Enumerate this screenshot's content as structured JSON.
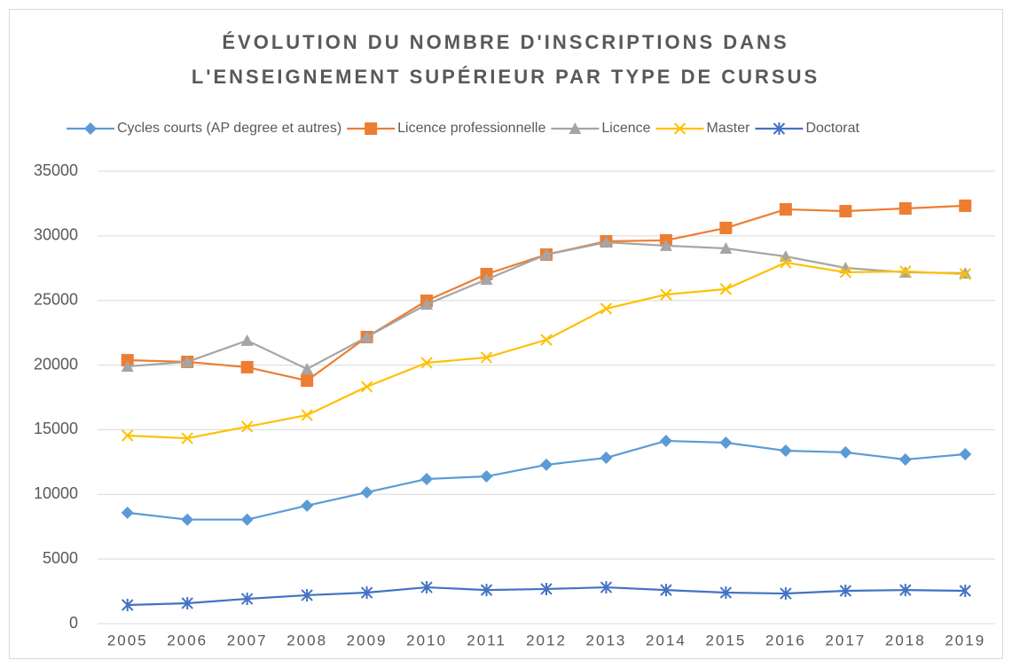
{
  "chart_data": {
    "type": "line",
    "title": [
      "ÉVOLUTION DU NOMBRE D'INSCRIPTIONS DANS",
      "L'ENSEIGNEMENT SUPÉRIEUR PAR TYPE DE CURSUS"
    ],
    "categories": [
      "2005",
      "2006",
      "2007",
      "2008",
      "2009",
      "2010",
      "2011",
      "2012",
      "2013",
      "2014",
      "2015",
      "2016",
      "2017",
      "2018",
      "2019"
    ],
    "series": [
      {
        "name": "Cycles courts (AP degree et autres)",
        "color": "#5b9bd5",
        "marker": "diamond",
        "values": [
          8580,
          8050,
          8050,
          9130,
          10160,
          11190,
          11390,
          12290,
          12830,
          14140,
          14000,
          13380,
          13250,
          12700,
          13110
        ]
      },
      {
        "name": "Licence professionnelle",
        "color": "#ed7d31",
        "marker": "square",
        "values": [
          20380,
          20250,
          19840,
          18800,
          22170,
          24980,
          27040,
          28550,
          29580,
          29650,
          30610,
          32050,
          31910,
          32120,
          32330
        ]
      },
      {
        "name": "Licence",
        "color": "#a5a5a5",
        "marker": "triangle",
        "values": [
          19900,
          20250,
          21900,
          19700,
          22170,
          24700,
          26630,
          28550,
          29500,
          29240,
          29030,
          28410,
          27520,
          27180,
          27110
        ]
      },
      {
        "name": "Master",
        "color": "#ffc000",
        "marker": "x",
        "values": [
          14550,
          14340,
          15240,
          16130,
          18330,
          20180,
          20590,
          21960,
          24370,
          25460,
          25880,
          27930,
          27180,
          27250,
          27040
        ]
      },
      {
        "name": "Doctorat",
        "color": "#4472c4",
        "marker": "star",
        "values": [
          1440,
          1580,
          1920,
          2200,
          2400,
          2810,
          2600,
          2680,
          2810,
          2600,
          2400,
          2330,
          2540,
          2600,
          2540
        ]
      }
    ],
    "ylim": [
      0,
      35000
    ],
    "yticks": [
      0,
      5000,
      10000,
      15000,
      20000,
      25000,
      30000,
      35000
    ],
    "grid": true,
    "legend": "top"
  }
}
